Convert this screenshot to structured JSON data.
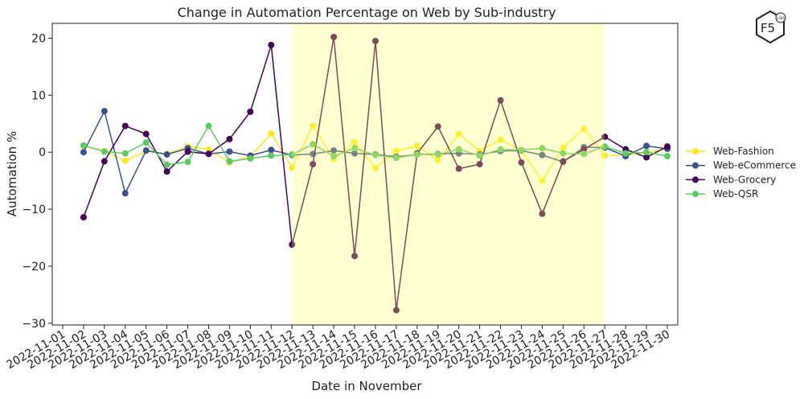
{
  "chart_data": {
    "type": "line",
    "title": "Change in Automation Percentage on Web by Sub-industry",
    "xlabel": "Date in November",
    "ylabel": "Automation %",
    "logo": {
      "text": "F5",
      "sub": "LABS"
    },
    "categories": [
      "2022-11-01",
      "2022-11-02",
      "2022-11-03",
      "2022-11-04",
      "2022-11-05",
      "2022-11-06",
      "2022-11-07",
      "2022-11-08",
      "2022-11-09",
      "2022-11-10",
      "2022-11-11",
      "2022-11-12",
      "2022-11-13",
      "2022-11-14",
      "2022-11-15",
      "2022-11-16",
      "2022-11-17",
      "2022-11-18",
      "2022-11-19",
      "2022-11-20",
      "2022-11-21",
      "2022-11-22",
      "2022-11-23",
      "2022-11-24",
      "2022-11-25",
      "2022-11-26",
      "2022-11-27",
      "2022-11-28",
      "2022-11-29",
      "2022-11-30"
    ],
    "highlight_span": [
      "2022-11-12",
      "2022-11-27"
    ],
    "highlight_color": "#ffff66",
    "ylim": [
      -30.3,
      22.6
    ],
    "yticks": [
      {
        "value": -30,
        "label": "−30"
      },
      {
        "value": -20,
        "label": "−20"
      },
      {
        "value": -10,
        "label": "−10"
      },
      0,
      10,
      20
    ],
    "grid": false,
    "legend": "outside right",
    "series": [
      {
        "name": "Web-Fashion",
        "color": "#fde725",
        "values": [
          null,
          1.1,
          0.2,
          -1.5,
          0.2,
          -0.3,
          1.0,
          0.5,
          -1.8,
          -0.8,
          3.3,
          -2.7,
          4.6,
          -1.2,
          1.8,
          -2.8,
          0.2,
          1.1,
          -1.4,
          3.2,
          0.2,
          2.2,
          0.3,
          -5.0,
          0.8,
          4.1,
          -0.6,
          -0.5,
          -0.1,
          0.6
        ]
      },
      {
        "name": "Web-eCommerce",
        "color": "#3b528b",
        "values": [
          null,
          0.0,
          7.2,
          -7.2,
          0.3,
          -0.4,
          0.7,
          -0.3,
          0.1,
          -0.6,
          0.4,
          -0.5,
          -0.3,
          0.3,
          -0.2,
          -0.4,
          -0.8,
          -0.4,
          -0.3,
          -0.2,
          -0.4,
          0.2,
          0.3,
          -0.5,
          -1.7,
          0.9,
          0.8,
          -0.7,
          1.1,
          0.6
        ]
      },
      {
        "name": "Web-Grocery",
        "color": "#440154",
        "values": [
          null,
          -11.4,
          -1.6,
          4.6,
          3.2,
          -3.4,
          0.1,
          -0.3,
          2.3,
          7.1,
          18.8,
          -16.2,
          -2.1,
          20.2,
          -18.2,
          19.5,
          -27.7,
          -0.2,
          4.5,
          -2.9,
          -2.1,
          9.1,
          -1.8,
          -10.8,
          -1.6,
          0.5,
          2.7,
          0.5,
          -0.9,
          1.0
        ]
      },
      {
        "name": "Web-QSR",
        "color": "#5ec962",
        "values": [
          null,
          1.2,
          0.1,
          -0.2,
          1.7,
          -2.2,
          -1.7,
          4.6,
          -1.6,
          -1.1,
          -0.6,
          -0.4,
          1.4,
          -0.7,
          0.7,
          -0.5,
          -1.0,
          -0.4,
          -0.4,
          0.5,
          -0.6,
          0.5,
          0.4,
          0.7,
          -0.2,
          -0.3,
          1.0,
          -0.2,
          0.0,
          -0.7
        ]
      }
    ]
  }
}
